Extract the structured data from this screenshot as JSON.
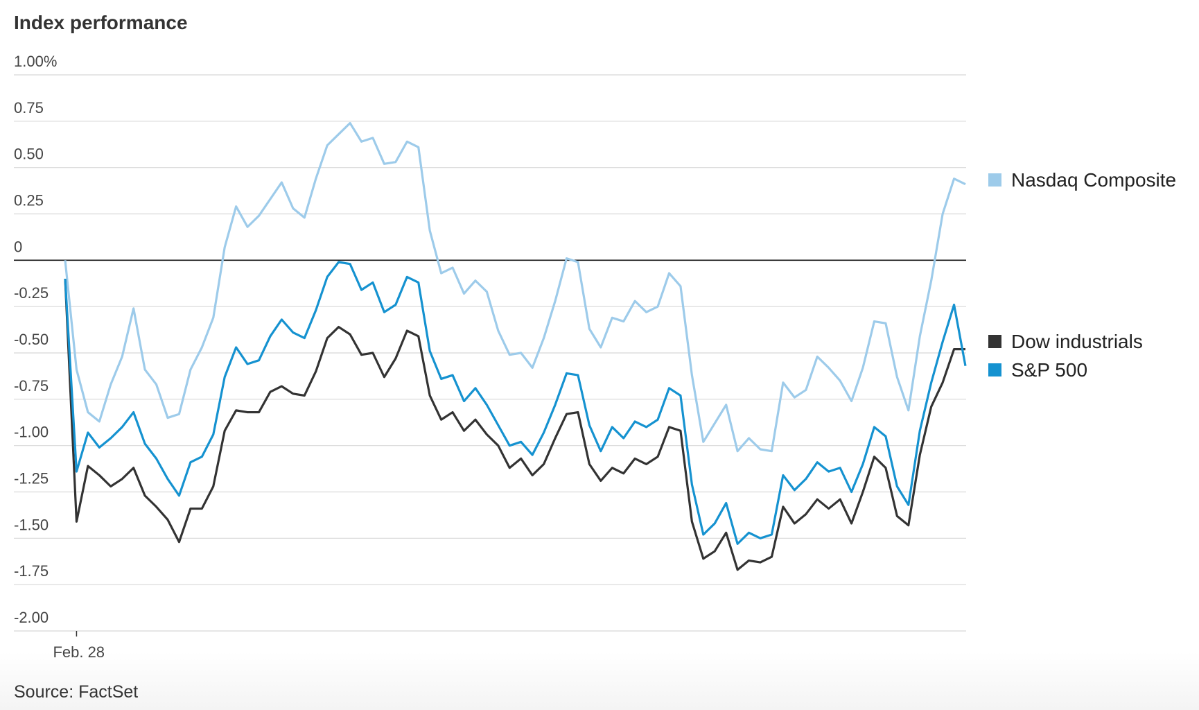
{
  "chart_data": {
    "type": "line",
    "title": "Index performance",
    "source": "Source: FactSet",
    "categories": [
      null,
      "Feb. 28",
      null,
      null,
      null,
      null,
      null,
      null,
      null,
      null,
      null,
      null,
      null,
      null,
      null,
      null,
      null,
      null,
      null,
      null,
      null,
      null,
      null,
      null,
      null,
      null,
      null,
      null,
      null,
      null,
      null,
      null,
      null,
      null,
      null,
      null,
      null,
      null,
      null,
      null,
      null,
      null,
      null,
      null,
      null,
      null,
      null,
      null,
      null,
      null,
      null,
      null,
      null,
      null,
      null,
      null,
      null,
      null,
      null,
      null,
      null,
      null,
      null,
      null,
      null,
      null,
      null,
      null,
      null,
      null,
      null,
      null,
      null,
      null,
      null,
      null,
      null,
      null,
      null,
      null
    ],
    "ylim": [
      -2,
      1
    ],
    "yticks": [
      {
        "value": 1,
        "label": "1.00%"
      },
      0.75,
      {
        "value": 0.5,
        "label": "0.50"
      },
      0.25,
      0,
      -0.25,
      {
        "value": -0.5,
        "label": "-0.50"
      },
      -0.75,
      {
        "value": -1,
        "label": "-1.00"
      },
      -1.25,
      {
        "value": -1.5,
        "label": "-1.50"
      },
      -1.75,
      {
        "value": -2,
        "label": "-2.00"
      }
    ],
    "grid": true,
    "series": [
      {
        "name": "Nasdaq Composite",
        "color": "#9dcbea",
        "values": [
          0,
          -0.59,
          -0.82,
          -0.87,
          -0.67,
          -0.52,
          -0.26,
          -0.59,
          -0.67,
          -0.85,
          -0.83,
          -0.59,
          -0.47,
          -0.31,
          0.07,
          0.29,
          0.18,
          0.24,
          0.33,
          0.42,
          0.28,
          0.23,
          0.44,
          0.62,
          0.68,
          0.74,
          0.64,
          0.66,
          0.52,
          0.53,
          0.64,
          0.61,
          0.16,
          -0.07,
          -0.04,
          -0.18,
          -0.11,
          -0.17,
          -0.38,
          -0.51,
          -0.5,
          -0.58,
          -0.42,
          -0.22,
          0.01,
          -0.01,
          -0.37,
          -0.47,
          -0.31,
          -0.33,
          -0.22,
          -0.28,
          -0.25,
          -0.07,
          -0.14,
          -0.62,
          -0.98,
          -0.88,
          -0.78,
          -1.03,
          -0.96,
          -1.02,
          -1.03,
          -0.66,
          -0.74,
          -0.7,
          -0.52,
          -0.58,
          -0.65,
          -0.76,
          -0.58,
          -0.33,
          -0.34,
          -0.63,
          -0.81,
          -0.41,
          -0.11,
          0.25,
          0.44,
          0.41
        ]
      },
      {
        "name": "Dow industrials",
        "color": "#333333",
        "values": [
          -0.1,
          -1.41,
          -1.11,
          -1.16,
          -1.22,
          -1.18,
          -1.12,
          -1.27,
          -1.33,
          -1.4,
          -1.52,
          -1.34,
          -1.34,
          -1.22,
          -0.92,
          -0.81,
          -0.82,
          -0.82,
          -0.71,
          -0.68,
          -0.72,
          -0.73,
          -0.6,
          -0.42,
          -0.36,
          -0.4,
          -0.51,
          -0.5,
          -0.63,
          -0.53,
          -0.38,
          -0.41,
          -0.73,
          -0.86,
          -0.82,
          -0.92,
          -0.86,
          -0.94,
          -1,
          -1.12,
          -1.07,
          -1.16,
          -1.1,
          -0.96,
          -0.83,
          -0.82,
          -1.1,
          -1.19,
          -1.12,
          -1.15,
          -1.07,
          -1.1,
          -1.06,
          -0.9,
          -0.92,
          -1.41,
          -1.61,
          -1.57,
          -1.47,
          -1.67,
          -1.62,
          -1.63,
          -1.6,
          -1.33,
          -1.42,
          -1.37,
          -1.29,
          -1.34,
          -1.29,
          -1.42,
          -1.25,
          -1.06,
          -1.12,
          -1.38,
          -1.43,
          -1.05,
          -0.79,
          -0.66,
          -0.48,
          -0.48
        ]
      },
      {
        "name": "S&P 500",
        "color": "#1592d0",
        "values": [
          -0.1,
          -1.14,
          -0.93,
          -1.01,
          -0.96,
          -0.9,
          -0.82,
          -0.99,
          -1.07,
          -1.18,
          -1.27,
          -1.09,
          -1.06,
          -0.94,
          -0.63,
          -0.47,
          -0.56,
          -0.54,
          -0.41,
          -0.32,
          -0.39,
          -0.42,
          -0.27,
          -0.09,
          -0.01,
          -0.02,
          -0.16,
          -0.12,
          -0.28,
          -0.24,
          -0.09,
          -0.12,
          -0.49,
          -0.64,
          -0.62,
          -0.76,
          -0.69,
          -0.78,
          -0.89,
          -1,
          -0.98,
          -1.05,
          -0.93,
          -0.78,
          -0.61,
          -0.62,
          -0.89,
          -1.03,
          -0.9,
          -0.96,
          -0.87,
          -0.9,
          -0.86,
          -0.69,
          -0.73,
          -1.21,
          -1.48,
          -1.42,
          -1.31,
          -1.53,
          -1.47,
          -1.5,
          -1.48,
          -1.16,
          -1.24,
          -1.18,
          -1.09,
          -1.14,
          -1.12,
          -1.25,
          -1.1,
          -0.9,
          -0.95,
          -1.22,
          -1.32,
          -0.92,
          -0.66,
          -0.44,
          -0.24,
          -0.57
        ]
      }
    ]
  }
}
